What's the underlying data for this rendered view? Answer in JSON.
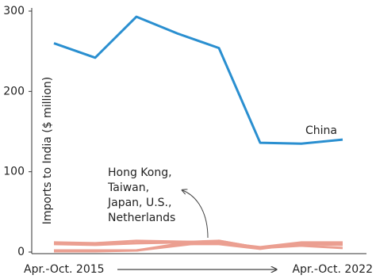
{
  "chart_data": {
    "type": "line",
    "ylabel": "Imports to India ($ million)",
    "categories": [
      "Apr.-Oct. 2015",
      null,
      null,
      null,
      null,
      null,
      null,
      "Apr.-Oct. 2022"
    ],
    "ylim": [
      0,
      300
    ],
    "yticks": [
      0,
      100,
      200,
      300
    ],
    "series": [
      {
        "name": "China",
        "color": "#2a8fd0",
        "values": [
          260,
          242,
          293,
          272,
          254,
          136,
          135,
          140
        ]
      },
      {
        "color": "#eb9f91",
        "values": [
          12,
          11,
          14,
          13,
          12,
          6,
          12,
          12
        ]
      },
      {
        "color": "#eb9f91",
        "values": [
          10,
          9,
          11,
          12,
          14,
          5,
          10,
          9
        ]
      },
      {
        "color": "#eb9f91",
        "values": [
          2,
          2,
          2,
          8,
          14,
          5,
          8,
          5
        ]
      },
      {
        "color": "#eb9f91",
        "values": [
          1,
          1,
          2,
          10,
          10,
          4,
          11,
          11
        ]
      }
    ],
    "annotation": [
      "Hong Kong,",
      "Taiwan,",
      "Japan, U.S.,",
      "Netherlands"
    ]
  }
}
